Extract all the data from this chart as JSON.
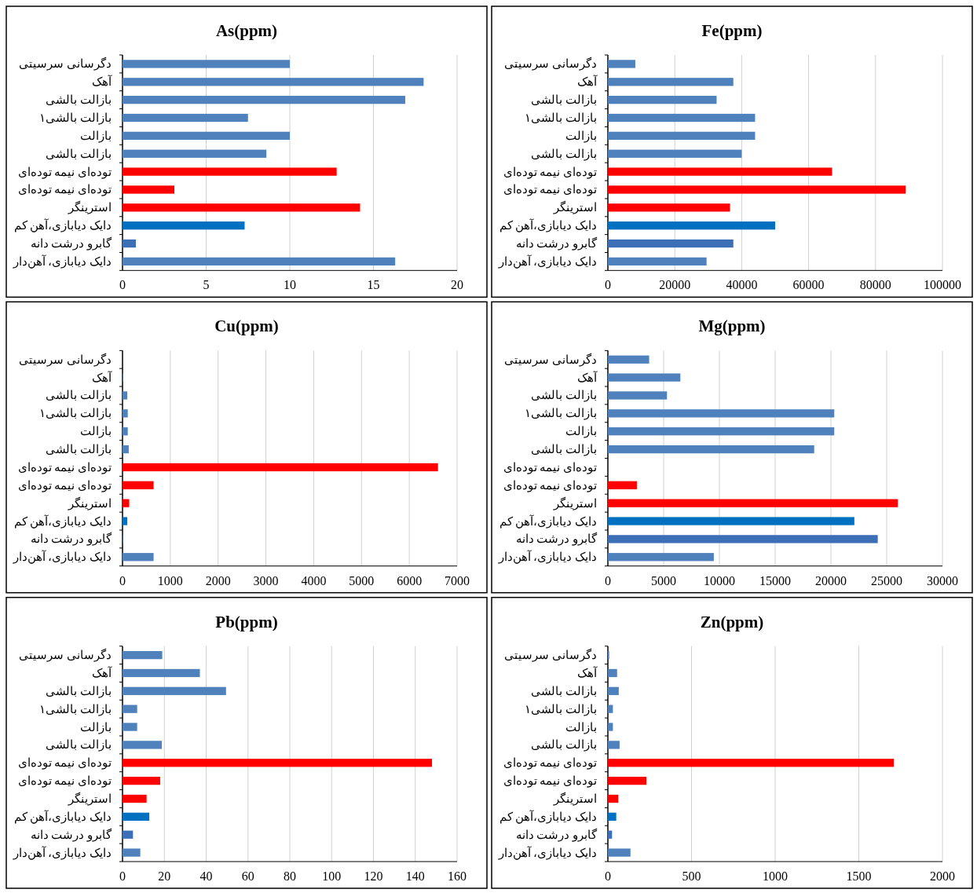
{
  "chart_data": [
    {
      "type": "bar",
      "orientation": "horizontal",
      "title": "As(ppm)",
      "grid": "x",
      "categories": [
        "دگرسانی سرسیتی",
        "آهک",
        "بازالت بالشی",
        "بازالت بالشی۱",
        "بازالت",
        "بازالت بالشی",
        "توده‌ای نیمه توده‌ای",
        "توده‌ای نیمه توده‌ای",
        "استرینگر",
        "دایک دیابازی،آهن کم",
        "گابرو درشت دانه",
        "دایک دیابازی، آهن‌دار"
      ],
      "values": [
        10,
        18,
        16.9,
        7.5,
        10,
        8.6,
        12.8,
        3.1,
        14.2,
        7.3,
        0.8,
        16.3
      ],
      "colors": [
        "#4f81bd",
        "#4f81bd",
        "#4f81bd",
        "#4f81bd",
        "#4f81bd",
        "#4f81bd",
        "#ff0000",
        "#ff0000",
        "#ff0000",
        "#0070c0",
        "#3d6fb6",
        "#4f81bd"
      ],
      "xlim": [
        0,
        20
      ],
      "xticks": [
        0,
        5,
        10,
        15,
        20
      ]
    },
    {
      "type": "bar",
      "orientation": "horizontal",
      "title": "Fe(ppm)",
      "grid": "x",
      "categories": [
        "دگرسانی سرسیتی",
        "آهک",
        "بازالت بالشی",
        "بازالت بالشی۱",
        "بازالت",
        "بازالت بالشی",
        "توده‌ای نیمه توده‌ای",
        "توده‌ای نیمه توده‌ای",
        "استرینگر",
        "دایک دیابازی،آهن کم",
        "گابرو درشت دانه",
        "دایک دیابازی، آهن‌دار"
      ],
      "values": [
        8200,
        37500,
        32500,
        44000,
        44000,
        40000,
        67000,
        89000,
        36500,
        50000,
        37500,
        29500
      ],
      "colors": [
        "#4f81bd",
        "#4f81bd",
        "#4f81bd",
        "#4f81bd",
        "#4f81bd",
        "#4f81bd",
        "#ff0000",
        "#ff0000",
        "#ff0000",
        "#0070c0",
        "#3d6fb6",
        "#4f81bd"
      ],
      "xlim": [
        0,
        100000
      ],
      "xticks": [
        0,
        20000,
        40000,
        60000,
        80000,
        100000
      ]
    },
    {
      "type": "bar",
      "orientation": "horizontal",
      "title": "Cu(ppm)",
      "grid": "x",
      "categories": [
        "دگرسانی سرسیتی",
        "آهک",
        "بازالت بالشی",
        "بازالت بالشی۱",
        "بازالت",
        "بازالت بالشی",
        "توده‌ای نیمه توده‌ای",
        "توده‌ای نیمه توده‌ای",
        "استرینگر",
        "دایک دیابازی،آهن کم",
        "گابرو درشت دانه",
        "دایک دیابازی، آهن‌دار"
      ],
      "values": [
        null,
        10,
        100,
        110,
        110,
        130,
        6600,
        650,
        140,
        100,
        10,
        650
      ],
      "colors": [
        null,
        "#4f81bd",
        "#4f81bd",
        "#4f81bd",
        "#4f81bd",
        "#4f81bd",
        "#ff0000",
        "#ff0000",
        "#ff0000",
        "#0070c0",
        "#3d6fb6",
        "#4f81bd"
      ],
      "xlim": [
        0,
        7000
      ],
      "xticks": [
        0,
        1000,
        2000,
        3000,
        4000,
        5000,
        6000,
        7000
      ]
    },
    {
      "type": "bar",
      "orientation": "horizontal",
      "title": "Mg(ppm)",
      "grid": "x",
      "categories": [
        "دگرسانی سرسیتی",
        "آهک",
        "بازالت بالشی",
        "بازالت بالشی۱",
        "بازالت",
        "بازالت بالشی",
        "توده‌ای نیمه توده‌ای",
        "توده‌ای نیمه توده‌ای",
        "استرینگر",
        "دایک دیابازی،آهن کم",
        "گابرو درشت دانه",
        "دایک دیابازی، آهن‌دار"
      ],
      "values": [
        3700,
        6500,
        5300,
        20300,
        20300,
        18500,
        null,
        2600,
        26000,
        22100,
        24200,
        9500
      ],
      "colors": [
        "#4f81bd",
        "#4f81bd",
        "#4f81bd",
        "#4f81bd",
        "#4f81bd",
        "#4f81bd",
        null,
        "#ff0000",
        "#ff0000",
        "#0070c0",
        "#3d6fb6",
        "#4f81bd"
      ],
      "xlim": [
        0,
        30000
      ],
      "xticks": [
        0,
        5000,
        10000,
        15000,
        20000,
        25000,
        30000
      ]
    },
    {
      "type": "bar",
      "orientation": "horizontal",
      "title": "Pb(ppm)",
      "grid": "x",
      "categories": [
        "دگرسانی سرسیتی",
        "آهک",
        "بازالت بالشی",
        "بازالت بالشی۱",
        "بازالت",
        "بازالت بالشی",
        "توده‌ای نیمه توده‌ای",
        "توده‌ای نیمه توده‌ای",
        "استرینگر",
        "دایک دیابازی،آهن کم",
        "گابرو درشت دانه",
        "دایک دیابازی، آهن‌دار"
      ],
      "values": [
        19,
        37,
        49.5,
        7,
        7,
        18.8,
        148,
        18,
        11.5,
        12.8,
        5,
        8.5
      ],
      "colors": [
        "#4f81bd",
        "#4f81bd",
        "#4f81bd",
        "#4f81bd",
        "#4f81bd",
        "#4f81bd",
        "#ff0000",
        "#ff0000",
        "#ff0000",
        "#0070c0",
        "#3d6fb6",
        "#4f81bd"
      ],
      "xlim": [
        0,
        160
      ],
      "xticks": [
        0,
        20,
        40,
        60,
        80,
        100,
        120,
        140,
        160
      ]
    },
    {
      "type": "bar",
      "orientation": "horizontal",
      "title": "Zn(ppm)",
      "grid": "x",
      "categories": [
        "دگرسانی سرسیتی",
        "آهک",
        "بازالت بالشی",
        "بازالت بالشی۱",
        "بازالت",
        "بازالت بالشی",
        "توده‌ای نیمه توده‌ای",
        "توده‌ای نیمه توده‌ای",
        "استرینگر",
        "دایک دیابازی،آهن کم",
        "گابرو درشت دانه",
        "دایک دیابازی، آهن‌دار"
      ],
      "values": [
        8,
        55,
        65,
        30,
        30,
        70,
        1710,
        230,
        62,
        50,
        25,
        135
      ],
      "colors": [
        "#4f81bd",
        "#4f81bd",
        "#4f81bd",
        "#4f81bd",
        "#4f81bd",
        "#4f81bd",
        "#ff0000",
        "#ff0000",
        "#ff0000",
        "#0070c0",
        "#3d6fb6",
        "#4f81bd"
      ],
      "xlim": [
        0,
        2000
      ],
      "xticks": [
        0,
        500,
        1000,
        1500,
        2000
      ]
    }
  ]
}
